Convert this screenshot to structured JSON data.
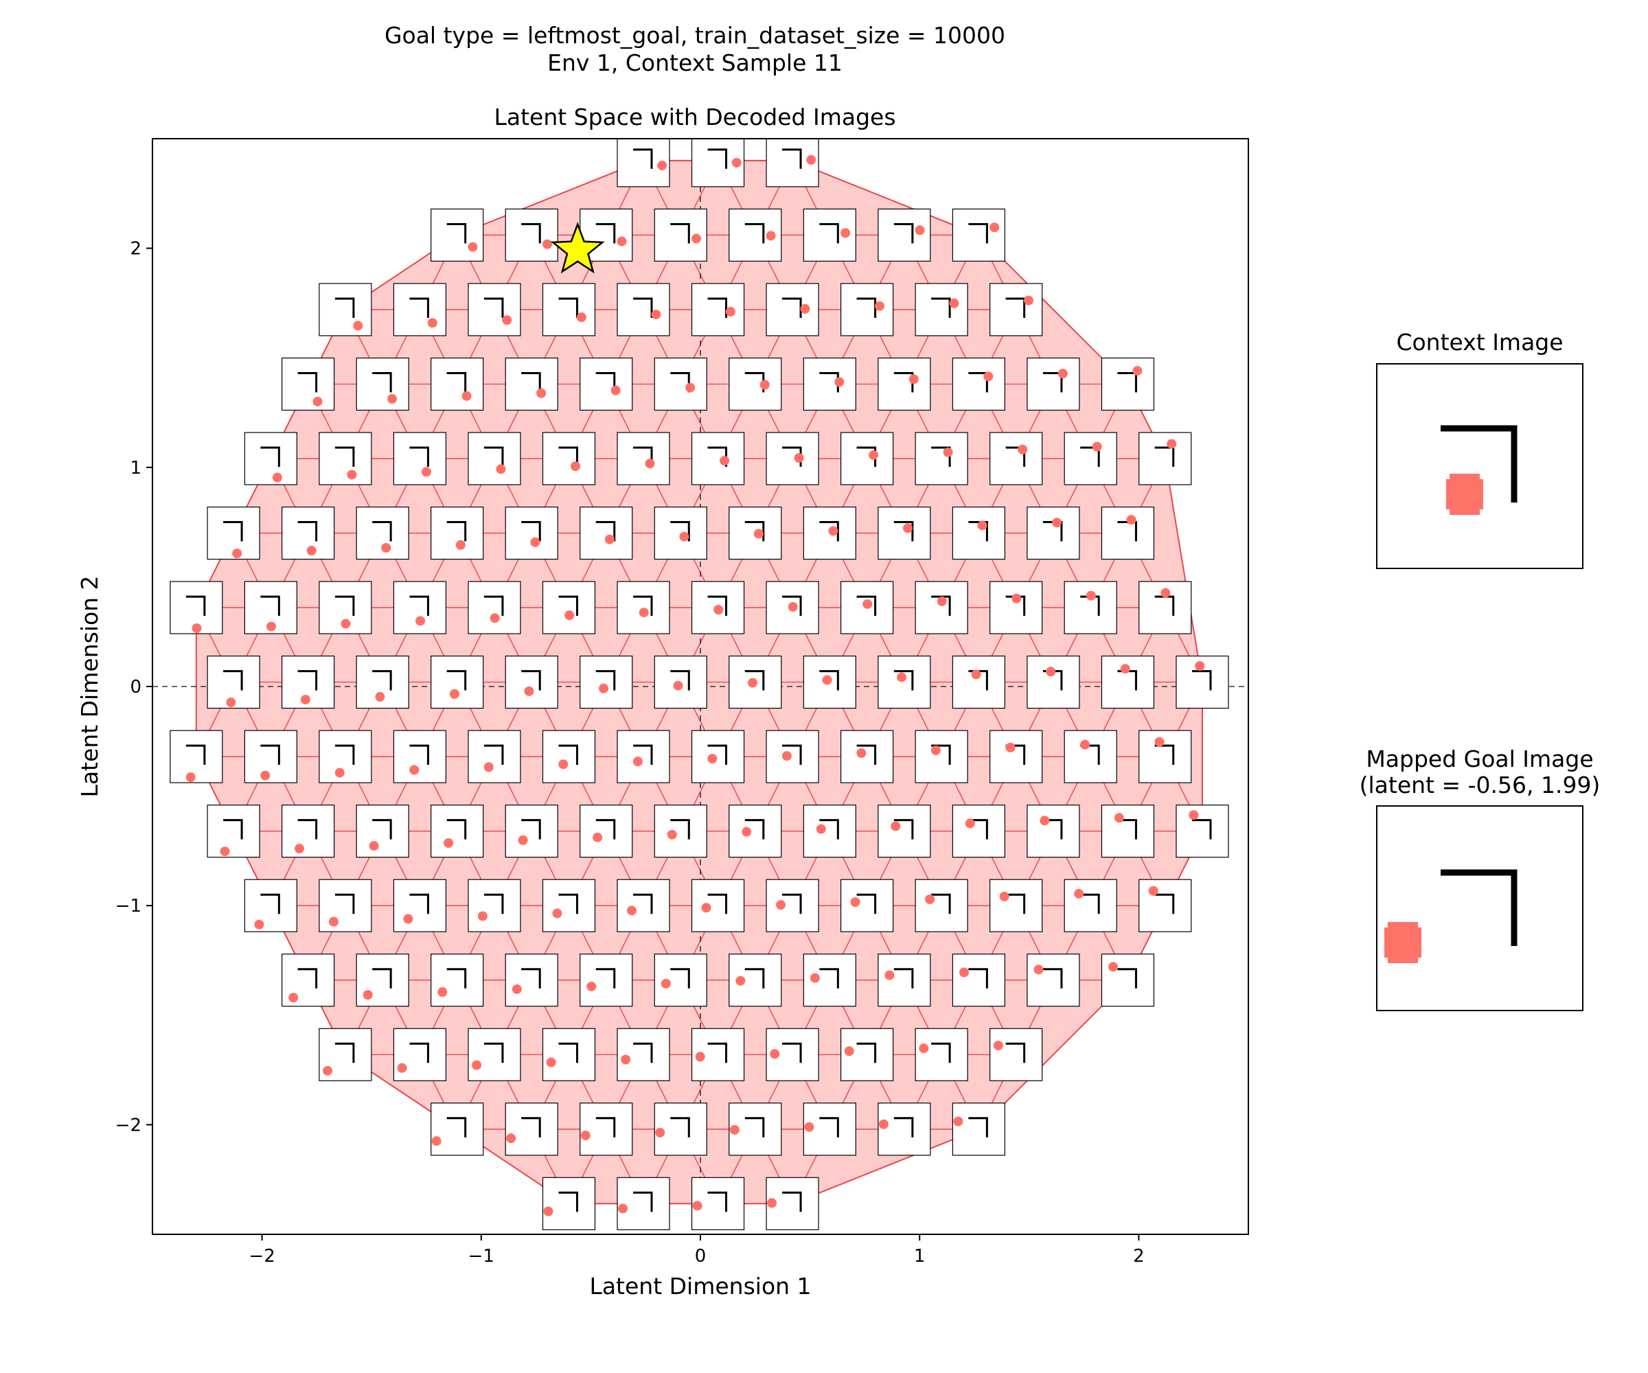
{
  "suptitle": {
    "line1": "Goal type = leftmost_goal, train_dataset_size = 10000",
    "line2": "Env 1, Context Sample 11"
  },
  "chart_data": [
    {
      "type": "scatter",
      "title": "Latent Space with Decoded Images",
      "xlabel": "Latent Dimension 1",
      "ylabel": "Latent Dimension 2",
      "xlim": [
        -2.5,
        2.5
      ],
      "ylim": [
        -2.5,
        2.5
      ],
      "xticks": [
        -2,
        -1,
        0,
        1,
        2
      ],
      "yticks": [
        -2,
        -1,
        0,
        1,
        2
      ],
      "xtick_labels": [
        "−2",
        "−1",
        "0",
        "1",
        "2"
      ],
      "ytick_labels": [
        "−2",
        "−1",
        "0",
        "1",
        "2"
      ],
      "zero_reference_lines": true,
      "grid": false,
      "region_fill_color": "#ffcccc",
      "triangulation_color": "#e8474a",
      "marker_color": "#ff6f66",
      "decoded_image_grid": {
        "x_min": -2.3,
        "x_max": 2.3,
        "x_step": 0.34,
        "y_min": -2.4,
        "y_max": 2.4,
        "y_step": 0.34,
        "boundary_radius": 2.3
      },
      "goal_marker": {
        "x": -0.56,
        "y": 1.99,
        "symbol": "star",
        "color": "#ffff00",
        "edge_color": "#000000"
      }
    }
  ],
  "context_panel": {
    "title": "Context Image",
    "ball_color": "#ff7268",
    "wall_color": "#000000"
  },
  "goal_panel": {
    "title_line1": "Mapped Goal Image",
    "title_line2": "(latent = -0.56, 1.99)",
    "ball_color": "#ff7268",
    "wall_color": "#000000"
  }
}
